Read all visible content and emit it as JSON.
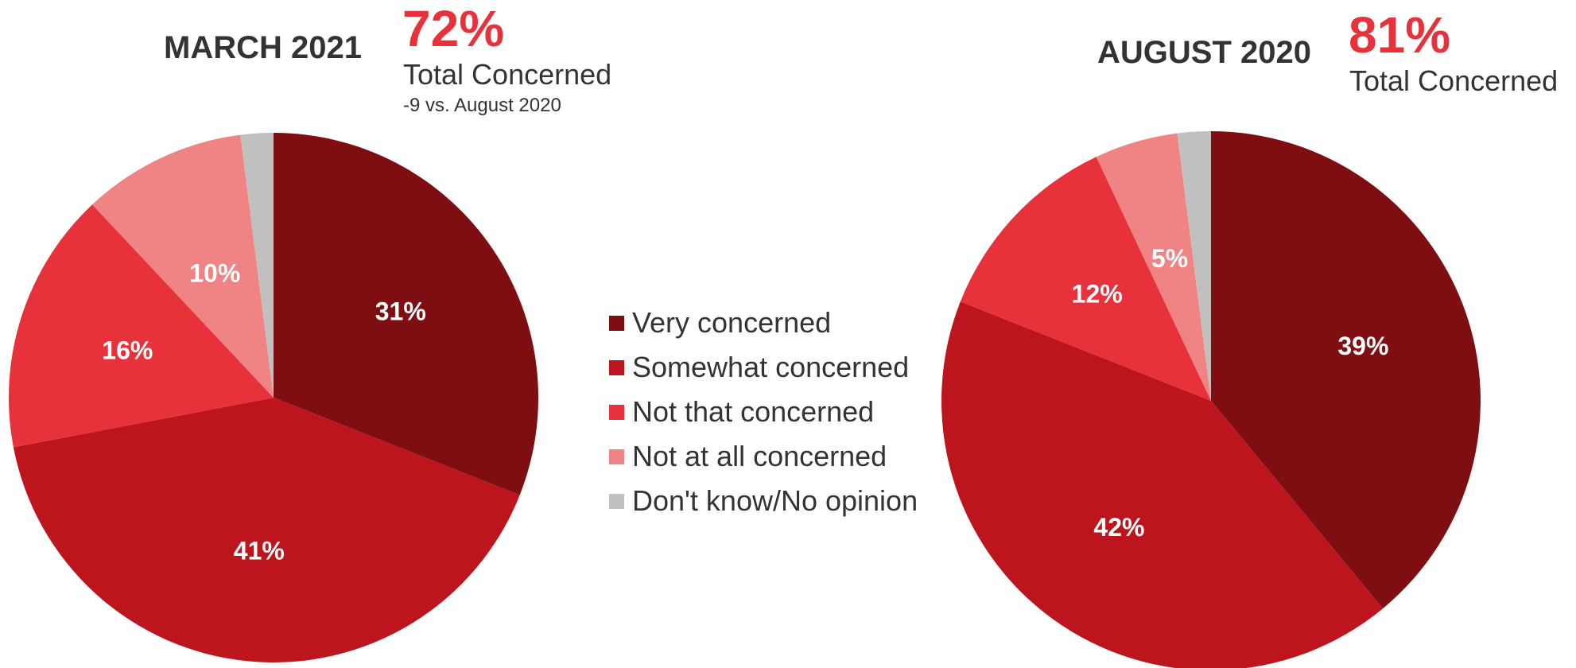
{
  "chart_data": [
    {
      "type": "pie",
      "title": "MARCH 2021",
      "headline": "72%",
      "headline_label": "Total Concerned",
      "change_note": "-9 vs. August 2020",
      "categories": [
        "Very concerned",
        "Somewhat concerned",
        "Not that concerned",
        "Not at all concerned",
        "Don't know/No opinion"
      ],
      "values": [
        31,
        41,
        16,
        10,
        2
      ],
      "labels": [
        "31%",
        "41%",
        "16%",
        "10%",
        ""
      ]
    },
    {
      "type": "pie",
      "title": "AUGUST 2020",
      "headline": "81%",
      "headline_label": "Total Concerned",
      "change_note": "",
      "categories": [
        "Very concerned",
        "Somewhat concerned",
        "Not that concerned",
        "Not at all concerned",
        "Don't know/No opinion"
      ],
      "values": [
        39,
        42,
        12,
        5,
        2
      ],
      "labels": [
        "39%",
        "42%",
        "12%",
        "5%",
        ""
      ]
    }
  ],
  "legend": {
    "placement": "center",
    "items": [
      {
        "label": "Very concerned",
        "color": "#7f0e12"
      },
      {
        "label": "Somewhat concerned",
        "color": "#bd151d"
      },
      {
        "label": "Not that concerned",
        "color": "#e8323b"
      },
      {
        "label": "Not at all concerned",
        "color": "#f08485"
      },
      {
        "label": "Don't know/No opinion",
        "color": "#c0c0c0"
      }
    ]
  },
  "colors": {
    "slices": [
      "#7f0e12",
      "#bd151d",
      "#e8323b",
      "#f08485",
      "#c0c0c0"
    ],
    "accent": "#e8323b",
    "text": "#333333",
    "slice_label": "#ffffff"
  }
}
